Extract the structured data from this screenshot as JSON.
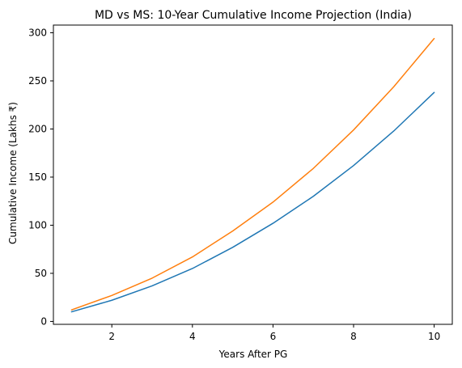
{
  "chart_data": {
    "type": "line",
    "title": "MD vs MS: 10-Year Cumulative Income Projection (India)",
    "xlabel": "Years After PG",
    "ylabel": "Cumulative Income (Lakhs ₹)",
    "x": [
      1,
      2,
      3,
      4,
      5,
      6,
      7,
      8,
      9,
      10
    ],
    "xlim": [
      0.55,
      10.45
    ],
    "ylim": [
      -3,
      308
    ],
    "xticks": [
      2,
      4,
      6,
      8,
      10
    ],
    "yticks": [
      0,
      50,
      100,
      150,
      200,
      250,
      300
    ],
    "grid": false,
    "series": [
      {
        "color": "#1f77b4",
        "values": [
          10,
          22,
          37,
          55,
          77,
          102,
          130,
          162,
          198,
          238
        ]
      },
      {
        "color": "#ff7f0e",
        "values": [
          12,
          27,
          45,
          67,
          94,
          124,
          159,
          199,
          244,
          294
        ]
      }
    ]
  }
}
